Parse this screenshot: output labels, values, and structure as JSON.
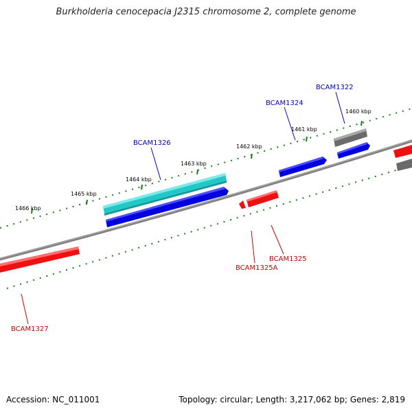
{
  "title": "Burkholderia cenocepacia J2315 chromosome 2, complete genome",
  "footer": {
    "accession": "Accession: NC_011001",
    "info": "Topology: circular; Length: 3,217,062 bp; Genes: 2,819"
  },
  "colors": {
    "backbone": "#808080",
    "tick": "#1a7a1a",
    "label_blue": "#0000cc",
    "label_red": "#cc0000",
    "gene_blue": "#0000e0",
    "gene_red": "#f01010",
    "gene_cyan": "#20c8c8",
    "gene_gray": "#6a6a6a"
  },
  "scale_labels": [
    "1466 kbp",
    "1465 kbp",
    "1464 kbp",
    "1463 kbp",
    "1462 kbp",
    "1461 kbp",
    "1460 kbp"
  ],
  "gene_labels": [
    {
      "text": "BCAM1322",
      "color": "blue"
    },
    {
      "text": "BCAM1324",
      "color": "blue"
    },
    {
      "text": "BCAM1326",
      "color": "blue"
    },
    {
      "text": "BCAM1325",
      "color": "red"
    },
    {
      "text": "BCAM1325A",
      "color": "red"
    },
    {
      "text": "BCAM1327",
      "color": "red"
    }
  ]
}
